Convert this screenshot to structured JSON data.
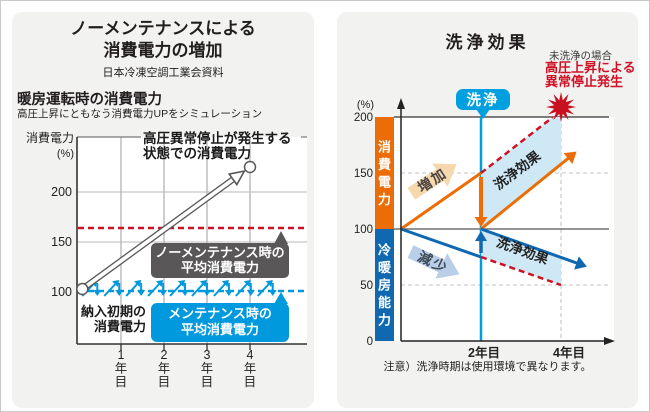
{
  "left_panel": {
    "title_lines": [
      "ノーメンテナンスによる",
      "消費電力の増加"
    ],
    "source": "日本冷凍空調工業会資料",
    "section_title": "暖房運転時の消費電力",
    "section_subtitle": "高圧上昇にともなう消費電力UPをシミュレーション",
    "y_axis_title_lines": [
      "消費電力",
      "(%)"
    ],
    "y_ticks": [
      "200",
      "150",
      "100"
    ],
    "x_ticks": [
      "1年目",
      "2年目",
      "3年目",
      "4年目"
    ],
    "annotation_top_lines": [
      "高圧異常停止が発生する",
      "状態での消費電力"
    ],
    "gray_box_lines": [
      "ノーメンテナンス時の",
      "平均消費電力"
    ],
    "blue_box_lines": [
      "メンテナンス時の",
      "平均消費電力"
    ],
    "initial_label_lines": [
      "納入初期の",
      "消費電力"
    ]
  },
  "right_panel": {
    "title": "洗浄効果",
    "warning_small": "未洗浄の場合",
    "warning_red_lines": [
      "高圧上昇による",
      "異常停止発生"
    ],
    "bubble_label": "洗浄",
    "pct_label": "(%)",
    "y_ticks": [
      "200",
      "150",
      "100",
      "50",
      "0"
    ],
    "x_ticks": [
      "2年目",
      "4年目"
    ],
    "band_top_label": "消費電力",
    "band_bottom_label": "冷暖房能力",
    "increase_label": "増加",
    "decrease_label": "減少",
    "effect_label_upper": "洗浄効果",
    "effect_label_lower": "洗浄効果",
    "note": "注意）洗浄時期は使用環境で異なります。"
  },
  "colors": {
    "accent_blue": "#0099dd",
    "cyan": "#00a0e0",
    "orange": "#ec6d05",
    "dark_blue": "#0f68b0",
    "red": "#cc1122",
    "gray_box": "#595757",
    "pale_orange": "#f6d8ae",
    "pale_blue": "#b9cfe9",
    "light_blue_fill": "#cfe8f5",
    "star_red": "#c8101e",
    "card_bg": "#f2f2f1"
  },
  "chart_data": [
    {
      "type": "line",
      "title": "暖房運転時の消費電力",
      "subtitle": "高圧上昇にともなう消費電力UPをシミュレーション",
      "ylabel": "消費電力(%)",
      "xlabel": "年目",
      "yticks": [
        100,
        150,
        200
      ],
      "xticks": [
        1,
        2,
        3,
        4
      ],
      "ylim": [
        50,
        255
      ],
      "series": [
        {
          "name": "ノーメンテナンス時の消費電力トレンド",
          "style": "outline_arrow",
          "points": [
            [
              0.1,
              103
            ],
            [
              4,
              225
            ]
          ]
        },
        {
          "name": "ノーメンテナンス時の平均消費電力",
          "style": "dashed_horizontal",
          "color_key": "red",
          "value": 164
        },
        {
          "name": "メンテナンス時の平均消費電力",
          "style": "dashed_horizontal",
          "color_key": "accent_blue",
          "value": 101
        },
        {
          "name": "メンテナンス時の消費電力変動",
          "style": "sawtooth",
          "color_key": "accent_blue",
          "low": 96,
          "high": 112,
          "start_x": 0.1,
          "period_x": 0.51,
          "cycles": 9
        }
      ]
    },
    {
      "type": "line",
      "title": "洗浄効果",
      "yticks": [
        0,
        50,
        100,
        150,
        200
      ],
      "xticks_years": [
        2,
        4
      ],
      "cleaning_year": 2,
      "series": [
        {
          "name": "消費電力（洗浄実施）",
          "color_key": "orange",
          "segments": [
            [
              [
                0,
                100
              ],
              [
                2,
                150
              ]
            ],
            [
              [
                2,
                100
              ],
              [
                4.35,
                168
              ]
            ]
          ],
          "arrow_end": true
        },
        {
          "name": "消費電力（未洗浄）",
          "color_key": "red",
          "style": "dashed",
          "points": [
            [
              2,
              150
            ],
            [
              3.8,
              200
            ]
          ]
        },
        {
          "name": "冷暖房能力（洗浄実施）",
          "color_key": "dark_blue",
          "segments": [
            [
              [
                0,
                100
              ],
              [
                2,
                75
              ]
            ],
            [
              [
                2,
                100
              ],
              [
                4.6,
                67
              ]
            ]
          ],
          "arrow_end": true
        },
        {
          "name": "冷暖房能力（未洗浄）",
          "color_key": "red",
          "style": "dashed",
          "points": [
            [
              2,
              75
            ],
            [
              4,
              50
            ]
          ]
        }
      ],
      "reset_arrows": [
        {
          "x": 2,
          "from": 150,
          "to": 100,
          "color_key": "orange"
        },
        {
          "x": 2,
          "from": 75,
          "to": 100,
          "color_key": "dark_blue"
        }
      ],
      "failure_point": {
        "x": 3.8,
        "y": 200
      },
      "shade_boundary_x": 4.0
    }
  ]
}
